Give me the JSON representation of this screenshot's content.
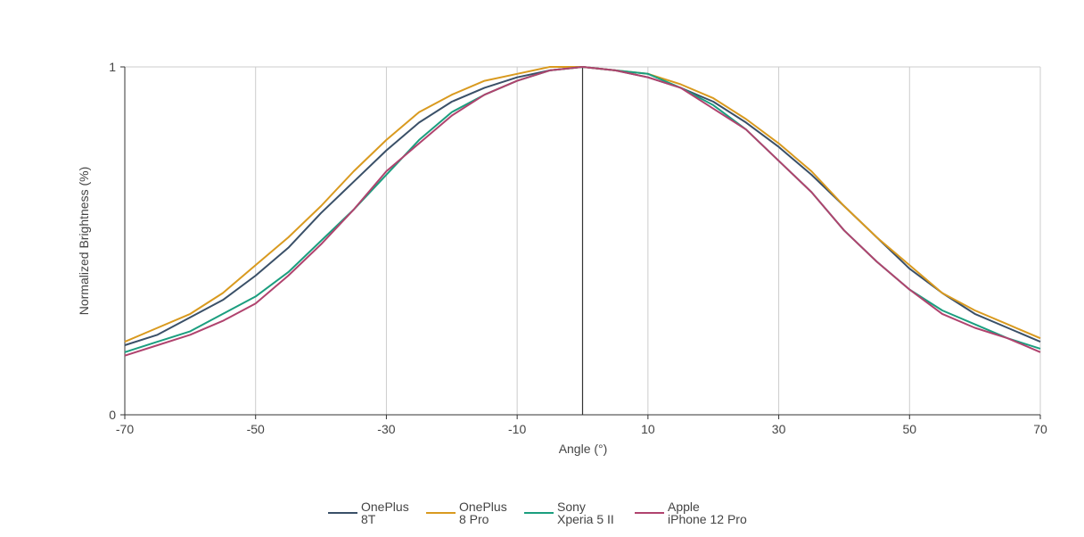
{
  "chart_data": {
    "type": "line",
    "title": "",
    "xlabel": "Angle (°)",
    "ylabel": "Normalized Brightness (%)",
    "xlim": [
      -70,
      70
    ],
    "ylim": [
      0,
      1
    ],
    "x_ticks": [
      -70,
      -50,
      -30,
      -10,
      10,
      30,
      50,
      70
    ],
    "x_tick_labels": [
      "-70",
      "-50",
      "-30",
      "-10",
      "10",
      "30",
      "50",
      "70"
    ],
    "y_ticks": [
      0,
      1
    ],
    "y_tick_labels": [
      "0",
      "1"
    ],
    "x_grid": true,
    "y_grid": false,
    "reference_line_x": 0,
    "legend_position": "bottom",
    "x": [
      -70,
      -65,
      -60,
      -55,
      -50,
      -45,
      -40,
      -35,
      -30,
      -25,
      -20,
      -15,
      -10,
      -5,
      0,
      5,
      10,
      15,
      20,
      25,
      30,
      35,
      40,
      45,
      50,
      55,
      60,
      65,
      70
    ],
    "series": [
      {
        "name_line1": "OnePlus",
        "name_line2": "8T",
        "color": "#3a5068",
        "values": [
          0.2,
          0.23,
          0.28,
          0.33,
          0.4,
          0.48,
          0.58,
          0.67,
          0.76,
          0.84,
          0.9,
          0.94,
          0.97,
          0.99,
          1.0,
          0.99,
          0.97,
          0.94,
          0.9,
          0.84,
          0.77,
          0.69,
          0.6,
          0.51,
          0.42,
          0.35,
          0.29,
          0.25,
          0.21
        ]
      },
      {
        "name_line1": "OnePlus",
        "name_line2": "8 Pro",
        "color": "#d99a1f",
        "values": [
          0.21,
          0.25,
          0.29,
          0.35,
          0.43,
          0.51,
          0.6,
          0.7,
          0.79,
          0.87,
          0.92,
          0.96,
          0.98,
          1.0,
          1.0,
          0.99,
          0.98,
          0.95,
          0.91,
          0.85,
          0.78,
          0.7,
          0.6,
          0.51,
          0.43,
          0.35,
          0.3,
          0.26,
          0.22
        ]
      },
      {
        "name_line1": "Sony",
        "name_line2": "Xperia 5 II",
        "color": "#1b9e7f",
        "values": [
          0.18,
          0.21,
          0.24,
          0.29,
          0.34,
          0.41,
          0.5,
          0.59,
          0.69,
          0.79,
          0.87,
          0.92,
          0.96,
          0.99,
          1.0,
          0.99,
          0.98,
          0.94,
          0.89,
          0.82,
          0.73,
          0.64,
          0.53,
          0.44,
          0.36,
          0.3,
          0.26,
          0.22,
          0.19
        ]
      },
      {
        "name_line1": "Apple",
        "name_line2": "iPhone 12 Pro",
        "color": "#b0436e",
        "values": [
          0.17,
          0.2,
          0.23,
          0.27,
          0.32,
          0.4,
          0.49,
          0.59,
          0.7,
          0.78,
          0.86,
          0.92,
          0.96,
          0.99,
          1.0,
          0.99,
          0.97,
          0.94,
          0.88,
          0.82,
          0.73,
          0.64,
          0.53,
          0.44,
          0.36,
          0.29,
          0.25,
          0.22,
          0.18
        ]
      }
    ]
  }
}
